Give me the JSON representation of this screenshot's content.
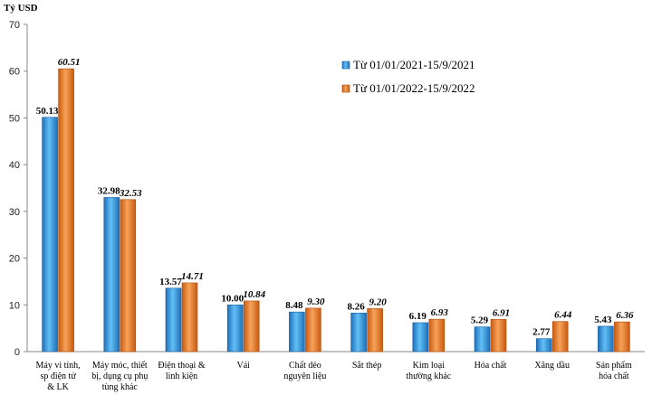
{
  "chart_data": {
    "type": "bar",
    "unit_label": "Tỷ USD",
    "ylim": [
      0,
      70
    ],
    "yticks": [
      0,
      10,
      20,
      30,
      40,
      50,
      60,
      70
    ],
    "grid": false,
    "legend_position": "top-right",
    "categories": [
      [
        "Máy vi tính,",
        "sp điện tử",
        "& LK"
      ],
      [
        "Máy móc, thiết",
        "bị, dụng cụ phụ",
        "tùng khác"
      ],
      [
        "Điện thoại &",
        "linh kiện"
      ],
      [
        "Vải"
      ],
      [
        "Chất dẻo",
        "nguyên liệu"
      ],
      [
        "Sắt thép"
      ],
      [
        "Kim loại",
        "thường khác"
      ],
      [
        "Hóa chất"
      ],
      [
        "Xăng dầu"
      ],
      [
        "Sản phẩm",
        "hóa chất"
      ]
    ],
    "series": [
      {
        "name": "Từ 01/01/2021-15/9/2021",
        "color": "#3a9ad9",
        "values": [
          50.13,
          32.98,
          13.57,
          10.0,
          8.48,
          8.26,
          6.19,
          5.29,
          2.77,
          5.43
        ],
        "labels": [
          "50.13",
          "32.98",
          "13.57",
          "10.00",
          "8.48",
          "8.26",
          "6.19",
          "5.29",
          "2.77",
          "5.43"
        ]
      },
      {
        "name": "Từ 01/01/2022-15/9/2022",
        "color": "#e8741e",
        "values": [
          60.51,
          32.53,
          14.71,
          10.84,
          9.3,
          9.2,
          6.93,
          6.91,
          6.44,
          6.36
        ],
        "labels": [
          "60.51",
          "32.53",
          "14.71",
          "10.84",
          "9.30",
          "9.20",
          "6.93",
          "6.91",
          "6.44",
          "6.36"
        ]
      }
    ]
  }
}
